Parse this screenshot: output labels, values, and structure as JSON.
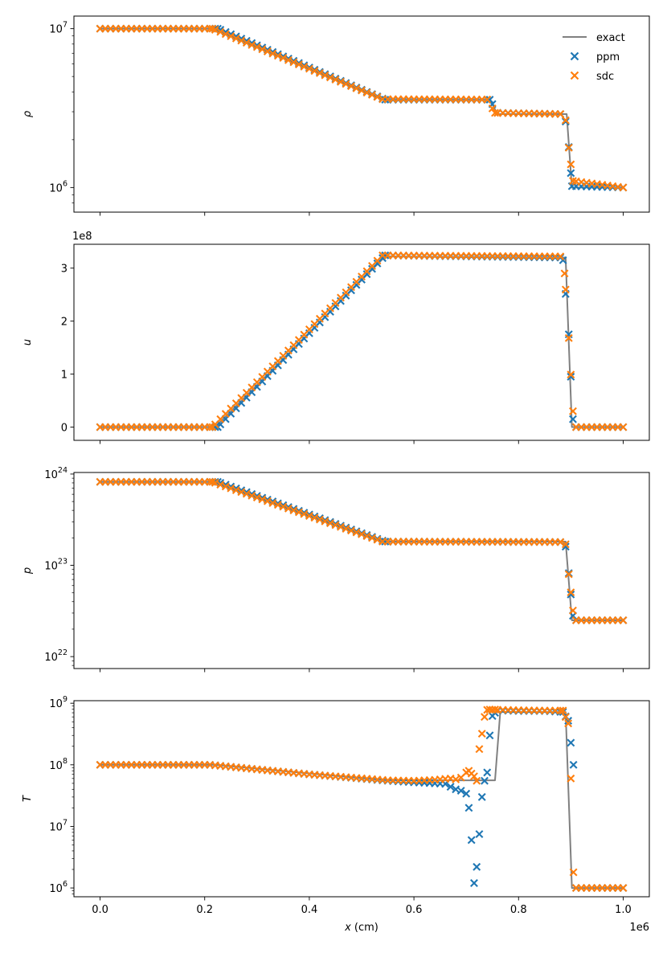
{
  "colors": {
    "exact": "#808080",
    "ppm": "#1f77b4",
    "sdc": "#ff7f0e"
  },
  "legend": {
    "placement": "top-right",
    "entries": [
      "exact",
      "ppm",
      "sdc"
    ]
  },
  "shared_x": {
    "label": "x (cm)",
    "label_var": "x",
    "label_unit": " (cm)",
    "offset": "1e6",
    "range": [
      -0.05,
      1.05
    ],
    "ticks": [
      "0.0",
      "0.2",
      "0.4",
      "0.6",
      "0.8",
      "1.0"
    ]
  },
  "chart_data": [
    {
      "type": "line",
      "ylabel": "ρ",
      "yscale": "log",
      "ylim": [
        700000,
        12000000
      ],
      "yticks": [
        {
          "v": 1000000,
          "m": "10",
          "e": "6"
        },
        {
          "v": 10000000,
          "m": "10",
          "e": "7"
        }
      ],
      "grid": false,
      "exact": {
        "x": [
          0,
          0.22,
          0.545,
          0.745,
          0.76,
          0.892,
          0.902,
          1.0
        ],
        "y": [
          10000000,
          10000000,
          3570000,
          3570000,
          2900000,
          2900000,
          1000000,
          1000000
        ]
      },
      "series": [
        {
          "name": "ppm",
          "x": [
            0,
            0.225,
            0.545,
            0.745,
            0.76,
            0.88,
            0.89,
            0.896,
            0.902,
            1.0
          ],
          "y": [
            10000000,
            10000000,
            3570000,
            3570000,
            2950000,
            2900000,
            2600000,
            1800000,
            1020000,
            1000000
          ]
        },
        {
          "name": "sdc",
          "x": [
            0,
            0.215,
            0.54,
            0.74,
            0.755,
            0.88,
            0.89,
            0.896,
            0.904,
            1.0
          ],
          "y": [
            10000000,
            10000000,
            3600000,
            3580000,
            2950000,
            2900000,
            2650000,
            1780000,
            1100000,
            1000000
          ]
        }
      ]
    },
    {
      "type": "line",
      "ylabel": "u",
      "yscale": "linear",
      "offset": "1e8",
      "ylim": [
        -0.25,
        3.45
      ],
      "yticks": [
        {
          "v": 0,
          "t": "0"
        },
        {
          "v": 1,
          "t": "1"
        },
        {
          "v": 2,
          "t": "2"
        },
        {
          "v": 3,
          "t": "3"
        }
      ],
      "grid": false,
      "exact": {
        "x": [
          0,
          0.22,
          0.545,
          0.89,
          0.902,
          1.0
        ],
        "y": [
          0,
          0,
          3.22,
          3.2,
          0,
          0
        ]
      },
      "series": [
        {
          "name": "ppm",
          "x": [
            0,
            0.225,
            0.545,
            0.88,
            0.885,
            0.896,
            0.904,
            0.91,
            1.0
          ],
          "y": [
            0,
            0,
            3.24,
            3.2,
            3.15,
            1.75,
            0.15,
            0,
            0
          ]
        },
        {
          "name": "sdc",
          "x": [
            0,
            0.215,
            0.54,
            0.88,
            0.888,
            0.896,
            0.904,
            0.91,
            1.0
          ],
          "y": [
            0,
            0,
            3.24,
            3.22,
            2.9,
            1.68,
            0.3,
            0,
            0
          ]
        }
      ]
    },
    {
      "type": "line",
      "ylabel": "p",
      "yscale": "log",
      "ylim": [
        7.4e+21,
        1.04e+24
      ],
      "yticks": [
        {
          "v": 1e+22,
          "m": "10",
          "e": "22"
        },
        {
          "v": 1e+23,
          "m": "10",
          "e": "23"
        },
        {
          "v": 1e+24,
          "m": "10",
          "e": "24"
        }
      ],
      "grid": false,
      "exact": {
        "x": [
          0,
          0.22,
          0.545,
          0.89,
          0.902,
          1.0
        ],
        "y": [
          8.2e+23,
          8.2e+23,
          1.82e+23,
          1.82e+23,
          2.5e+22,
          2.5e+22
        ]
      },
      "series": [
        {
          "name": "ppm",
          "x": [
            0,
            0.225,
            0.545,
            0.88,
            0.89,
            0.896,
            0.904,
            0.91,
            1.0
          ],
          "y": [
            8.2e+23,
            8.2e+23,
            1.82e+23,
            1.8e+23,
            1.6e+23,
            8.2e+22,
            2.8e+22,
            2.5e+22,
            2.5e+22
          ]
        },
        {
          "name": "sdc",
          "x": [
            0,
            0.215,
            0.54,
            0.88,
            0.89,
            0.896,
            0.904,
            0.91,
            1.0
          ],
          "y": [
            8.2e+23,
            8.2e+23,
            1.82e+23,
            1.8e+23,
            1.7e+23,
            8e+22,
            3.2e+22,
            2.5e+22,
            2.5e+22
          ]
        }
      ]
    },
    {
      "type": "line",
      "ylabel": "T",
      "yscale": "log",
      "ylim": [
        720000,
        1100000000
      ],
      "yticks": [
        {
          "v": 1000000,
          "m": "10",
          "e": "6"
        },
        {
          "v": 10000000,
          "m": "10",
          "e": "7"
        },
        {
          "v": 100000000,
          "m": "10",
          "e": "8"
        },
        {
          "v": 1000000000,
          "m": "10",
          "e": "9"
        }
      ],
      "grid": false,
      "exact": {
        "x": [
          0,
          0.22,
          0.545,
          0.755,
          0.765,
          0.89,
          0.902,
          1.0
        ],
        "y": [
          100000000,
          100000000,
          56000000,
          56000000,
          720000000,
          720000000,
          1000000,
          1000000
        ]
      },
      "series": [
        {
          "name": "ppm",
          "x": [
            0,
            0.21,
            0.4,
            0.55,
            0.6,
            0.64,
            0.66,
            0.67,
            0.68,
            0.69,
            0.7,
            0.705,
            0.71,
            0.715,
            0.72,
            0.725,
            0.73,
            0.735,
            0.74,
            0.745,
            0.75,
            0.755,
            0.76,
            0.77,
            0.8,
            0.85,
            0.885,
            0.895,
            0.905,
            0.91,
            1.0
          ],
          "y": [
            100000000,
            100000000,
            70000000,
            55000000,
            52000000,
            50000000,
            49000000,
            44000000,
            40000000,
            38000000,
            34000000,
            20000000,
            6000000,
            1200000,
            2200000,
            7500000,
            30000000,
            55000000,
            75000000,
            300000000,
            620000000,
            700000000,
            760000000,
            760000000,
            750000000,
            750000000,
            720000000,
            520000000,
            100000000,
            1000000,
            1000000
          ]
        },
        {
          "name": "sdc",
          "x": [
            0,
            0.21,
            0.4,
            0.55,
            0.6,
            0.64,
            0.67,
            0.68,
            0.69,
            0.7,
            0.705,
            0.715,
            0.72,
            0.725,
            0.73,
            0.735,
            0.74,
            0.745,
            0.75,
            0.755,
            0.76,
            0.77,
            0.8,
            0.85,
            0.885,
            0.895,
            0.9,
            0.905,
            0.91,
            1.0
          ],
          "y": [
            100000000,
            100000000,
            70000000,
            56000000,
            55000000,
            57000000,
            60000000,
            58000000,
            62000000,
            75000000,
            80000000,
            65000000,
            55000000,
            180000000,
            320000000,
            600000000,
            780000000,
            790000000,
            780000000,
            790000000,
            780000000,
            780000000,
            770000000,
            760000000,
            760000000,
            470000000,
            60000000,
            1800000,
            1000000,
            1000000
          ]
        }
      ]
    }
  ]
}
